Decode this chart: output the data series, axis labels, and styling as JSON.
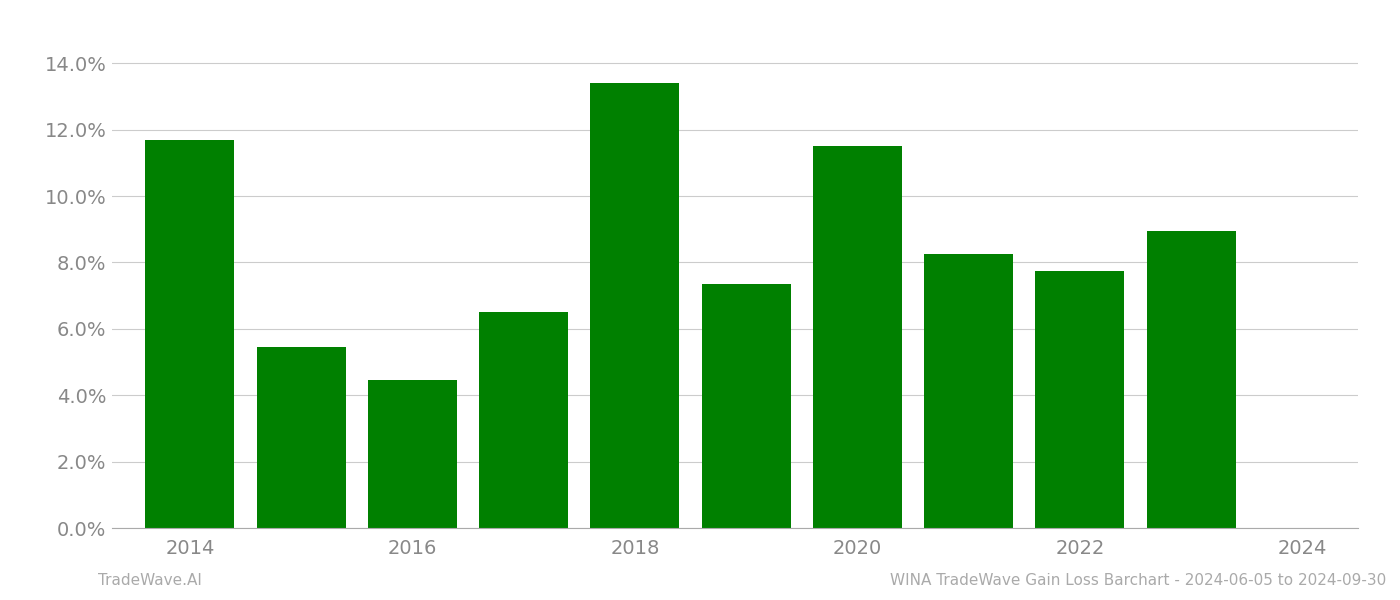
{
  "years": [
    2014,
    2015,
    2016,
    2017,
    2018,
    2019,
    2020,
    2021,
    2022,
    2023
  ],
  "values": [
    0.117,
    0.0545,
    0.0445,
    0.065,
    0.134,
    0.0735,
    0.115,
    0.0825,
    0.0775,
    0.0895
  ],
  "bar_color": "#008000",
  "background_color": "#ffffff",
  "ylim": [
    0,
    0.15
  ],
  "ytick_step": 0.02,
  "footer_left": "TradeWave.AI",
  "footer_right": "WINA TradeWave Gain Loss Barchart - 2024-06-05 to 2024-09-30",
  "grid_color": "#cccccc",
  "axis_color": "#aaaaaa",
  "tick_label_color": "#888888",
  "footer_color": "#aaaaaa",
  "bar_width": 0.8,
  "tick_fontsize": 14,
  "footer_fontsize": 11
}
